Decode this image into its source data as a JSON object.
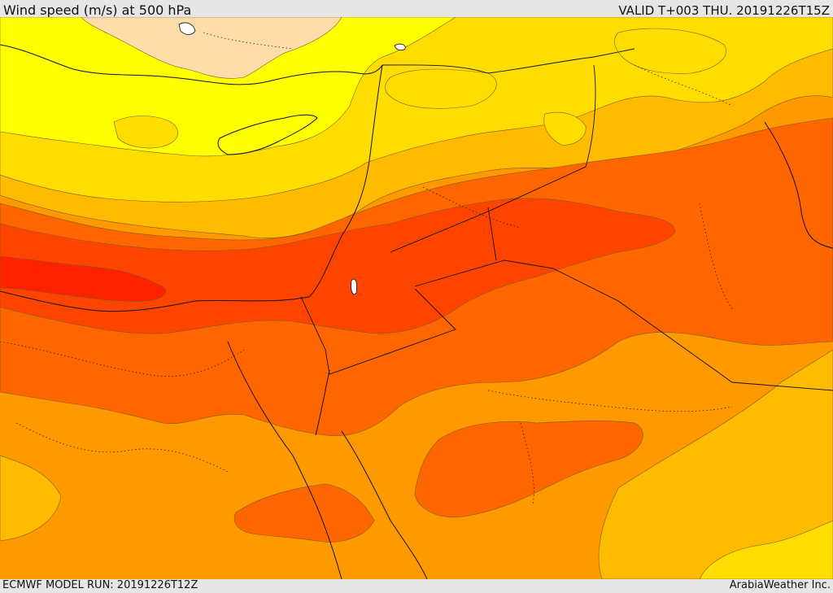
{
  "header": {
    "title": "Wind speed (m/s) at 500 hPa",
    "valid": "VALID T+003 THU. 20191226T15Z"
  },
  "footer": {
    "model_run": "ECMWF MODEL RUN: 20191226T12Z",
    "credit": "ArabiaWeather Inc."
  },
  "map": {
    "variable": "wind speed",
    "level": "500 hPa",
    "colors": {
      "very_low": "#fddcaa",
      "low": "#ffff00",
      "low_mid": "#ffdd00",
      "mid": "#ffbb00",
      "mid_high": "#ff9900",
      "high": "#ff6600",
      "very_high": "#ff4400",
      "max": "#ff2200"
    }
  }
}
